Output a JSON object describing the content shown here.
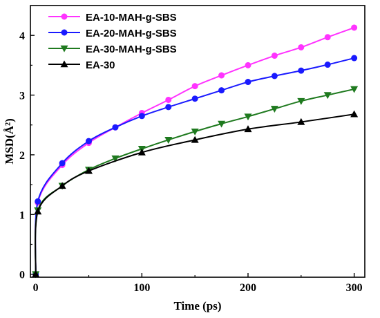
{
  "chart_data": {
    "type": "line",
    "xlabel": "Time (ps)",
    "ylabel": "MSD(Å²)",
    "xlim": [
      -5,
      310
    ],
    "ylim": [
      -0.05,
      4.5
    ],
    "xticks": [
      0,
      100,
      200,
      300
    ],
    "yticks": [
      0,
      1,
      2,
      3,
      4
    ],
    "grid": false,
    "legend_position": "top-left",
    "series": [
      {
        "name": "EA-10-MAH-g-SBS",
        "color": "#ff33ff",
        "marker": "circle",
        "x": [
          0,
          2,
          25,
          50,
          75,
          100,
          125,
          150,
          175,
          200,
          225,
          250,
          275,
          300
        ],
        "y": [
          0,
          1.2,
          1.83,
          2.2,
          2.46,
          2.7,
          2.92,
          3.15,
          3.33,
          3.5,
          3.66,
          3.8,
          3.97,
          4.13
        ]
      },
      {
        "name": "EA-20-MAH-g-SBS",
        "color": "#1a1aff",
        "marker": "circle",
        "x": [
          0,
          2,
          25,
          50,
          75,
          100,
          125,
          150,
          175,
          200,
          225,
          250,
          275,
          300
        ],
        "y": [
          0,
          1.22,
          1.86,
          2.23,
          2.46,
          2.65,
          2.8,
          2.94,
          3.08,
          3.22,
          3.32,
          3.41,
          3.51,
          3.62
        ]
      },
      {
        "name": "EA-30-MAH-g-SBS",
        "color": "#1f7a1f",
        "marker": "triangle-down",
        "x": [
          0,
          2,
          25,
          50,
          75,
          100,
          125,
          150,
          175,
          200,
          225,
          250,
          275,
          300
        ],
        "y": [
          0,
          1.07,
          1.48,
          1.75,
          1.94,
          2.1,
          2.25,
          2.39,
          2.52,
          2.64,
          2.77,
          2.9,
          3.0,
          3.1
        ]
      },
      {
        "name": "EA-30",
        "color": "#000000",
        "marker": "triangle-up",
        "x": [
          0,
          2,
          25,
          50,
          100,
          150,
          200,
          250,
          300
        ],
        "y": [
          0,
          1.05,
          1.48,
          1.73,
          2.04,
          2.25,
          2.43,
          2.55,
          2.68
        ]
      }
    ]
  }
}
